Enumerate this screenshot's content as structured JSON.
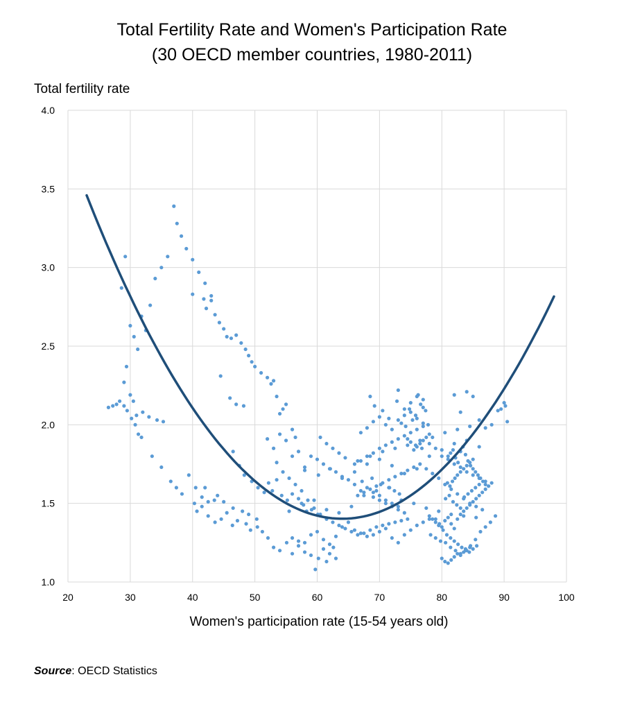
{
  "chart_data": {
    "type": "scatter",
    "title": "Total Fertility Rate and Women's Participation Rate",
    "subtitle": "(30 OECD member countries, 1980-2011)",
    "xlabel": "Women's participation rate (15-54 years old)",
    "ylabel": "Total fertility rate",
    "xlim": [
      20,
      100
    ],
    "ylim": [
      1.0,
      4.0
    ],
    "x_ticks": [
      "20",
      "30",
      "40",
      "50",
      "60",
      "70",
      "80",
      "90",
      "100"
    ],
    "y_ticks": [
      "1.0",
      "1.5",
      "2.0",
      "2.5",
      "3.0",
      "3.5",
      "4.0"
    ],
    "grid": true,
    "legend": "none",
    "point_color": "#5b9bd5",
    "trend_color": "#1f4e79",
    "trendline": {
      "type": "polynomial-2",
      "x": [
        23,
        30,
        40,
        50,
        60,
        66,
        70,
        80,
        90,
        98
      ],
      "y": [
        3.57,
        2.74,
        1.98,
        1.65,
        1.48,
        1.45,
        1.47,
        1.7,
        2.22,
        2.8
      ]
    },
    "series": [
      {
        "x": [
          26.5,
          27.2,
          27.8,
          28.3,
          29.0,
          29.4,
          30.0,
          30.6,
          31.2,
          31.8,
          32.5,
          33.2,
          34.0,
          35.0,
          36.0,
          37.0,
          37.5,
          38.2,
          39.0,
          40.0,
          41.0,
          42.0,
          43.0,
          43.6,
          44.3,
          45.0,
          45.5,
          46.2,
          47.0,
          47.8,
          48.5,
          49.0,
          49.5,
          50.0,
          51.0,
          52.0,
          52.6,
          53.0,
          53.5,
          54.0,
          54.5,
          55.0,
          56.0,
          56.5,
          28.6,
          29.2,
          30.0,
          30.5,
          31.0,
          32.0,
          33.5,
          35.0,
          36.5,
          37.4,
          38.3,
          39.4,
          40.5,
          41.5,
          42.5,
          43.5,
          45.0,
          46.5,
          48.0,
          49.0,
          50.3,
          29.0,
          29.5,
          30.2,
          30.8,
          31.3,
          31.8,
          33.0,
          34.3,
          35.3,
          40.0,
          41.8,
          42.2,
          43.0,
          44.5,
          46.0,
          47.0,
          48.2,
          40.3,
          40.7,
          41.5,
          42.5,
          43.6,
          44.6,
          45.5,
          46.4,
          47.2,
          48.6,
          49.3,
          50.4,
          51.2,
          52.1,
          53.0,
          54.0,
          55.1,
          56.0,
          57.0,
          58.0,
          59.0,
          59.7,
          60.2,
          61.0,
          61.5,
          62.0,
          62.6,
          63.0,
          42.0,
          44.0,
          46.5,
          47.5,
          48.3,
          49.5,
          50.5,
          51.5,
          52.2,
          52.8,
          53.5,
          54.3,
          55.2,
          56.0,
          57.0,
          57.8,
          58.3,
          59.1,
          60.1,
          52.0,
          53.0,
          54.0,
          55.0,
          56.0,
          57.0,
          58.0,
          59.0,
          60.0,
          61.0,
          62.0,
          63.0,
          64.0,
          65.0,
          66.0,
          67.0,
          68.0,
          69.0,
          70.0,
          71.0,
          72.0,
          73.0,
          53.5,
          54.5,
          55.5,
          56.5,
          57.5,
          58.5,
          59.5,
          60.5,
          61.5,
          62.5,
          63.5,
          64.5,
          65.5,
          66.5,
          67.5,
          68.5,
          69.5,
          70.5,
          71.5,
          72.5,
          73.5,
          74.5,
          56.0,
          57.0,
          58.0,
          59.0,
          60.0,
          61.0,
          62.0,
          63.0,
          64.0,
          65.0,
          66.0,
          67.0,
          68.0,
          69.0,
          70.0,
          71.0,
          72.0,
          73.0,
          74.0,
          75.0,
          76.0,
          77.0,
          78.0,
          55.5,
          57.5,
          59.5,
          61.5,
          63.5,
          65.5,
          67.5,
          69.5,
          71.5,
          73.5,
          75.5,
          77.5,
          79.5,
          81.5,
          83.5,
          85.5,
          58.0,
          60.2,
          62.1,
          64.0,
          66.0,
          68.0,
          70.0,
          72.0,
          74.0,
          76.0,
          78.0,
          80.0,
          82.0,
          84.0,
          86.0,
          60.5,
          61.5,
          62.5,
          63.5,
          64.5,
          66.5,
          68.5,
          70.5,
          72.5,
          74.5,
          76.5,
          78.5,
          80.5,
          82.5,
          84.5,
          66.0,
          67.0,
          68.0,
          69.0,
          70.0,
          71.0,
          72.0,
          73.0,
          74.0,
          75.0,
          76.0,
          77.0,
          78.0,
          79.0,
          80.0,
          81.0,
          82.0,
          83.0,
          84.0,
          85.0,
          86.0,
          87.0,
          66.5,
          67.5,
          68.5,
          69.5,
          70.5,
          71.5,
          72.5,
          73.5,
          74.5,
          75.5,
          76.5,
          77.5,
          78.5,
          79.5,
          80.5,
          81.5,
          82.5,
          83.5,
          84.5,
          85.5,
          86.5,
          67.0,
          68.0,
          69.0,
          70.0,
          71.0,
          72.0,
          73.0,
          74.0,
          75.0,
          76.0,
          77.0,
          68.5,
          69.2,
          70.5,
          71.5,
          72.8,
          73.5,
          74.2,
          74.8,
          75.3,
          75.8,
          76.2,
          76.6,
          77.0,
          77.4,
          77.8,
          73.0,
          74.0,
          75.0,
          76.0,
          77.0,
          78.0,
          78.5,
          79.0,
          79.5,
          80.0,
          80.5,
          81.0,
          81.5,
          82.0,
          82.5,
          83.0,
          83.5,
          84.0,
          84.5,
          85.0,
          85.5,
          86.0,
          86.5,
          87.0,
          87.5,
          88.0,
          78.2,
          79.0,
          79.8,
          80.6,
          81.4,
          82.2,
          83.0,
          83.8,
          84.6,
          85.4,
          86.2,
          87.0,
          87.8,
          88.6,
          79.0,
          79.6,
          80.2,
          80.8,
          81.4,
          82.0,
          82.6,
          83.2,
          83.8,
          84.4,
          85.0,
          85.6,
          80.0,
          80.5,
          81.0,
          81.5,
          82.0,
          82.5,
          83.0,
          83.5,
          84.0,
          84.5,
          81.0,
          81.4,
          81.8,
          82.2,
          82.6,
          83.0,
          83.4,
          83.8,
          84.2,
          84.6,
          85.0,
          85.4,
          85.8,
          86.2,
          86.6,
          87.0,
          82.0,
          83.0,
          84.0,
          85.0,
          86.0,
          87.0,
          88.0,
          89.0,
          90.0,
          90.5,
          90.2,
          89.5,
          80.6,
          81.2,
          81.8,
          82.4,
          83.0,
          83.6,
          84.2,
          84.8,
          85.4,
          86.0,
          80.9,
          81.3,
          81.7,
          82.1,
          82.5,
          83.0,
          83.5,
          84.0,
          84.5,
          85.0,
          75.5,
          76.0,
          76.5,
          77.0,
          77.5,
          78.0,
          74.5,
          75.0,
          75.8,
          76.8,
          67.2,
          68.8,
          70.2,
          71.6,
          72.4,
          73.2,
          69.0,
          70.0,
          71.0,
          72.0,
          73.0,
          74.0
        ],
        "y": [
          2.11,
          2.12,
          2.13,
          2.15,
          2.27,
          2.37,
          2.63,
          2.56,
          2.48,
          2.69,
          2.6,
          2.76,
          2.93,
          3.0,
          3.07,
          3.39,
          3.28,
          3.2,
          3.12,
          3.05,
          2.97,
          2.9,
          2.79,
          2.7,
          2.65,
          2.61,
          2.56,
          2.55,
          2.57,
          2.52,
          2.48,
          2.44,
          2.4,
          2.37,
          2.33,
          2.3,
          2.26,
          2.28,
          2.18,
          2.07,
          2.1,
          2.13,
          1.97,
          1.92,
          2.87,
          3.07,
          2.19,
          2.15,
          2.06,
          2.08,
          1.8,
          1.73,
          1.64,
          1.6,
          1.56,
          1.68,
          1.6,
          1.54,
          1.51,
          1.52,
          1.51,
          1.47,
          1.45,
          1.43,
          1.4,
          2.12,
          2.09,
          2.04,
          2.0,
          1.94,
          1.92,
          2.05,
          2.03,
          2.02,
          2.83,
          2.8,
          2.74,
          2.82,
          2.31,
          2.17,
          2.13,
          2.12,
          1.5,
          1.45,
          1.48,
          1.42,
          1.38,
          1.4,
          1.44,
          1.36,
          1.39,
          1.37,
          1.33,
          1.35,
          1.32,
          1.28,
          1.22,
          1.2,
          1.25,
          1.18,
          1.23,
          1.19,
          1.17,
          1.08,
          1.15,
          1.21,
          1.13,
          1.18,
          1.22,
          1.15,
          1.6,
          1.55,
          1.83,
          1.74,
          1.68,
          1.64,
          1.6,
          1.57,
          1.63,
          1.58,
          1.65,
          1.55,
          1.52,
          1.56,
          1.53,
          1.49,
          1.45,
          1.46,
          1.43,
          1.91,
          1.85,
          1.94,
          1.9,
          1.8,
          1.83,
          1.73,
          1.8,
          1.78,
          1.75,
          1.72,
          1.7,
          1.67,
          1.65,
          1.62,
          1.58,
          1.6,
          1.57,
          1.55,
          1.52,
          1.5,
          1.48,
          1.76,
          1.7,
          1.66,
          1.62,
          1.58,
          1.52,
          1.47,
          1.43,
          1.4,
          1.38,
          1.36,
          1.34,
          1.32,
          1.3,
          1.31,
          1.33,
          1.35,
          1.36,
          1.37,
          1.38,
          1.39,
          1.4,
          1.28,
          1.26,
          1.25,
          1.3,
          1.32,
          1.27,
          1.24,
          1.29,
          1.35,
          1.38,
          1.33,
          1.31,
          1.29,
          1.3,
          1.32,
          1.34,
          1.28,
          1.25,
          1.3,
          1.33,
          1.36,
          1.38,
          1.4,
          1.45,
          1.5,
          1.52,
          1.46,
          1.44,
          1.48,
          1.55,
          1.58,
          1.6,
          1.52,
          1.5,
          1.47,
          1.45,
          1.43,
          1.42,
          1.41,
          1.71,
          1.68,
          1.72,
          1.66,
          1.7,
          1.75,
          1.78,
          1.74,
          1.69,
          1.72,
          1.8,
          1.84,
          1.88,
          1.9,
          1.86,
          1.92,
          1.88,
          1.85,
          1.82,
          1.79,
          1.77,
          1.8,
          1.83,
          1.85,
          1.87,
          1.9,
          1.92,
          1.95,
          1.97,
          1.99,
          1.75,
          1.77,
          1.8,
          1.82,
          1.85,
          1.87,
          1.89,
          1.91,
          1.93,
          1.95,
          1.97,
          1.99,
          1.88,
          1.85,
          1.8,
          1.78,
          1.75,
          1.73,
          1.7,
          1.68,
          1.66,
          1.64,
          1.55,
          1.57,
          1.59,
          1.61,
          1.63,
          1.65,
          1.67,
          1.69,
          1.71,
          1.73,
          1.75,
          1.72,
          1.69,
          1.66,
          1.62,
          1.59,
          1.56,
          1.53,
          1.5,
          1.48,
          1.46,
          1.95,
          1.98,
          2.02,
          2.05,
          2.0,
          1.97,
          2.03,
          2.06,
          2.08,
          2.04,
          2.01,
          2.18,
          2.12,
          2.09,
          2.04,
          2.15,
          2.01,
          1.99,
          2.1,
          2.03,
          2.06,
          2.19,
          2.13,
          2.16,
          2.09,
          2.0,
          2.22,
          2.1,
          2.14,
          2.18,
          2.11,
          1.42,
          1.4,
          1.38,
          1.36,
          1.35,
          1.39,
          1.41,
          1.37,
          1.34,
          1.4,
          1.43,
          1.45,
          1.47,
          1.49,
          1.51,
          1.53,
          1.55,
          1.57,
          1.59,
          1.61,
          1.63,
          1.3,
          1.28,
          1.26,
          1.25,
          1.22,
          1.2,
          1.18,
          1.21,
          1.23,
          1.27,
          1.32,
          1.35,
          1.38,
          1.42,
          1.4,
          1.37,
          1.33,
          1.3,
          1.28,
          1.26,
          1.24,
          1.22,
          1.2,
          1.19,
          1.21,
          1.23,
          1.15,
          1.13,
          1.12,
          1.14,
          1.16,
          1.18,
          1.17,
          1.19,
          1.2,
          1.22,
          1.8,
          1.82,
          1.84,
          1.79,
          1.76,
          1.83,
          1.86,
          1.81,
          1.77,
          1.74,
          1.72,
          1.7,
          1.68,
          1.66,
          1.64,
          1.62,
          2.19,
          2.08,
          2.21,
          2.18,
          2.03,
          1.98,
          2.0,
          2.09,
          2.14,
          2.02,
          2.12,
          2.1,
          1.53,
          1.55,
          1.51,
          1.49,
          1.47,
          1.54,
          1.56,
          1.58,
          1.6,
          1.62,
          1.63,
          1.61,
          1.64,
          1.66,
          1.68,
          1.7,
          1.72,
          1.74,
          1.76,
          1.78,
          1.84,
          1.86,
          1.88,
          1.9,
          1.92,
          1.94,
          1.91,
          1.89,
          1.87,
          1.85,
          1.64,
          1.66,
          1.62,
          1.6,
          1.58,
          1.56,
          1.54,
          1.52,
          1.5,
          1.48,
          1.46,
          1.44
        ]
      }
    ]
  }
}
